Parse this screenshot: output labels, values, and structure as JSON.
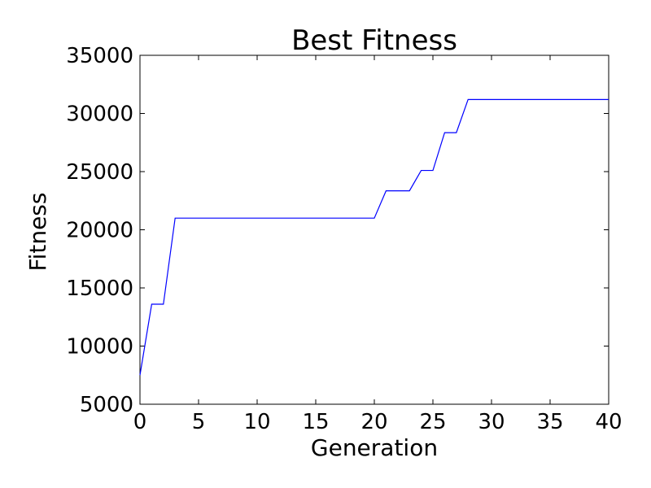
{
  "chart_data": {
    "type": "line",
    "title": "Best Fitness",
    "xlabel": "Generation",
    "ylabel": "Fitness",
    "xlim": [
      0,
      40
    ],
    "ylim": [
      5000,
      35000
    ],
    "xticks": [
      0,
      5,
      10,
      15,
      20,
      25,
      30,
      35,
      40
    ],
    "yticks": [
      5000,
      10000,
      15000,
      20000,
      25000,
      30000,
      35000
    ],
    "grid": false,
    "legend": "none",
    "series": [
      {
        "color": "#0000ff",
        "x": [
          0,
          1,
          2,
          3,
          4,
          5,
          6,
          7,
          8,
          9,
          10,
          11,
          12,
          13,
          14,
          15,
          16,
          17,
          18,
          19,
          20,
          21,
          22,
          23,
          24,
          25,
          26,
          27,
          28,
          29,
          30,
          31,
          32,
          33,
          34,
          35,
          36,
          37,
          38,
          39,
          40
        ],
        "y": [
          7500,
          13600,
          13600,
          21000,
          21000,
          21000,
          21000,
          21000,
          21000,
          21000,
          21000,
          21000,
          21000,
          21000,
          21000,
          21000,
          21000,
          21000,
          21000,
          21000,
          21000,
          23350,
          23350,
          23350,
          25100,
          25100,
          28350,
          28350,
          31200,
          31200,
          31200,
          31200,
          31200,
          31200,
          31200,
          31200,
          31200,
          31200,
          31200,
          31200,
          31200
        ]
      }
    ]
  }
}
